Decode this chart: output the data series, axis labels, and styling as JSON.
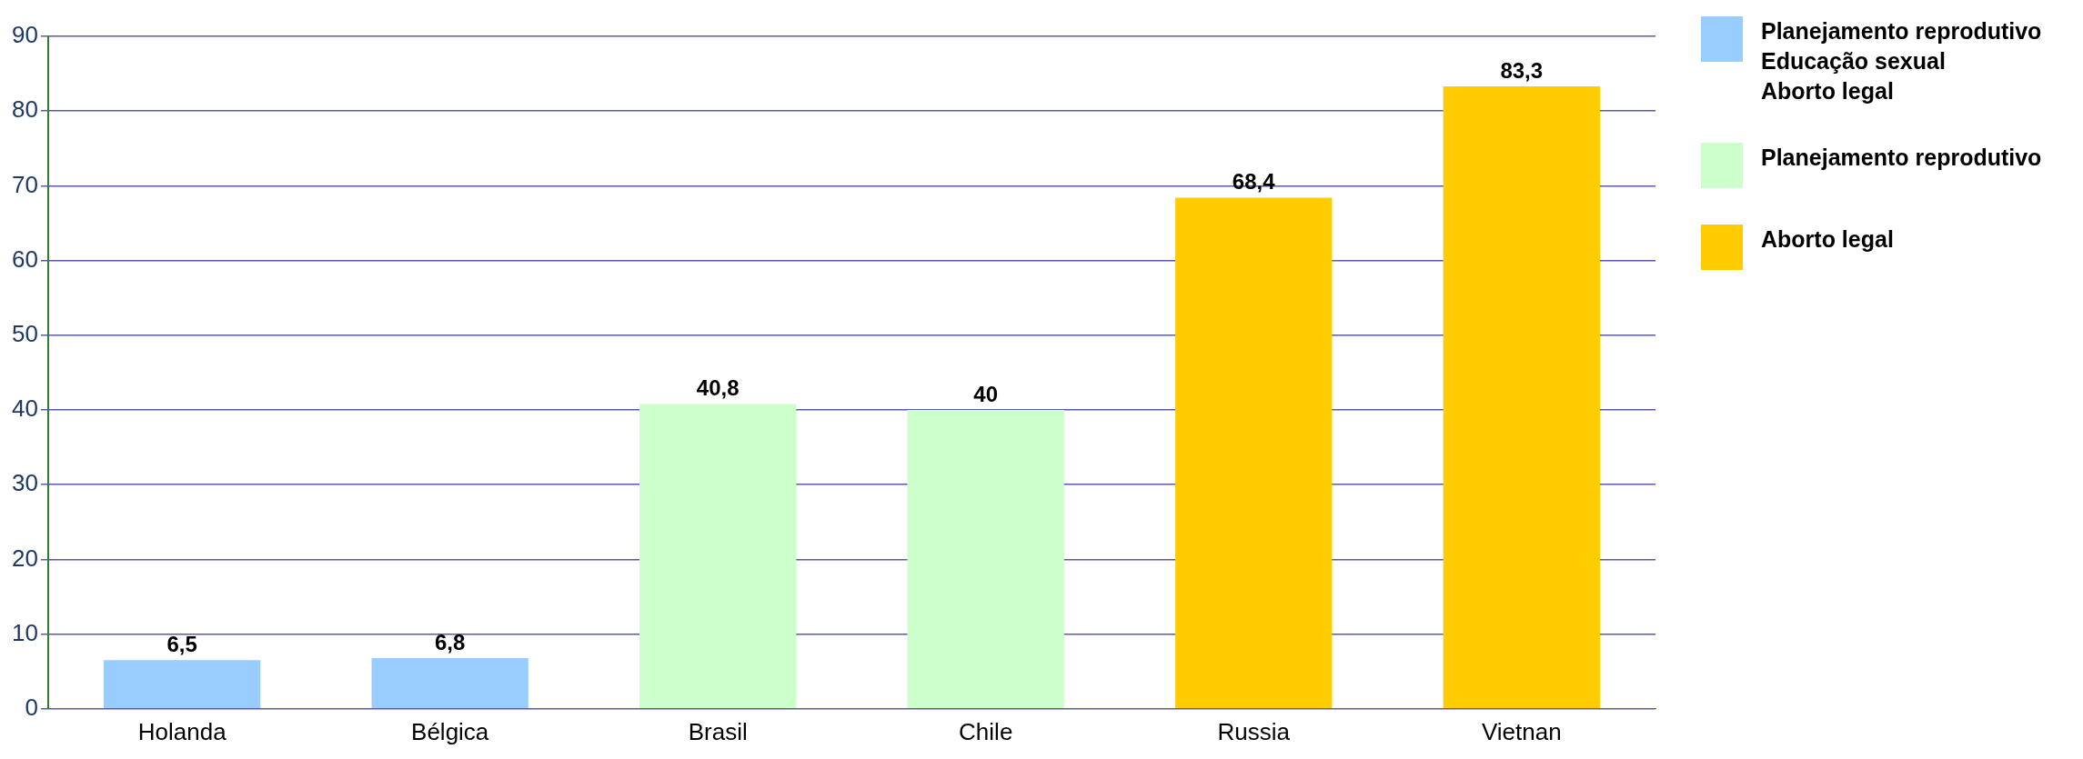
{
  "chart_data": {
    "type": "bar",
    "categories": [
      "Holanda",
      "Bélgica",
      "Brasil",
      "Chile",
      "Russia",
      "Vietnan"
    ],
    "series": [
      {
        "name": "Planejamento reprodutivo\nEducação sexual\nAborto legal",
        "color": "#99ccff",
        "values": [
          6.5,
          6.8,
          null,
          null,
          null,
          null
        ],
        "value_labels": [
          "6,5",
          "6,8",
          null,
          null,
          null,
          null
        ]
      },
      {
        "name": "Planejamento reprodutivo",
        "color": "#ccffcc",
        "values": [
          null,
          null,
          40.8,
          40,
          null,
          null
        ],
        "value_labels": [
          null,
          null,
          "40,8",
          "40",
          null,
          null
        ]
      },
      {
        "name": "Aborto legal",
        "color": "#ffcc00",
        "values": [
          null,
          null,
          null,
          null,
          68.4,
          83.3
        ],
        "value_labels": [
          null,
          null,
          null,
          null,
          "68,4",
          "83,3"
        ]
      }
    ],
    "ylim": [
      0,
      90
    ],
    "yticks": [
      0,
      10,
      20,
      30,
      40,
      50,
      60,
      70,
      80,
      90
    ],
    "grid": "y",
    "legend": "right"
  }
}
